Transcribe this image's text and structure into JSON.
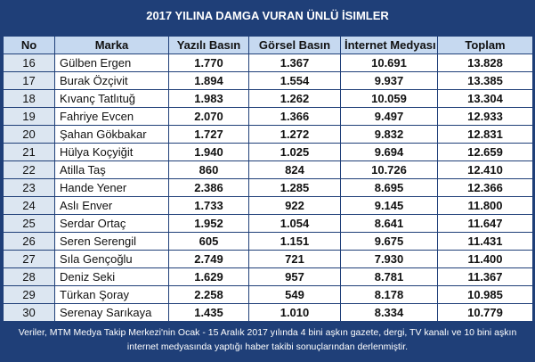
{
  "header": {
    "title": "2017 YILINA DAMGA VURAN ÜNLÜ İSIMLER"
  },
  "table": {
    "columns": [
      "No",
      "Marka",
      "Yazılı Basın",
      "Görsel Basın",
      "İnternet Medyası",
      "Toplam"
    ],
    "rows": [
      [
        "16",
        "Gülben Ergen",
        "1.770",
        "1.367",
        "10.691",
        "13.828"
      ],
      [
        "17",
        "Burak Özçivit",
        "1.894",
        "1.554",
        "9.937",
        "13.385"
      ],
      [
        "18",
        "Kıvanç Tatlıtuğ",
        "1.983",
        "1.262",
        "10.059",
        "13.304"
      ],
      [
        "19",
        "Fahriye Evcen",
        "2.070",
        "1.366",
        "9.497",
        "12.933"
      ],
      [
        "20",
        "Şahan Gökbakar",
        "1.727",
        "1.272",
        "9.832",
        "12.831"
      ],
      [
        "21",
        "Hülya Koçyiğit",
        "1.940",
        "1.025",
        "9.694",
        "12.659"
      ],
      [
        "22",
        "Atilla Taş",
        "860",
        "824",
        "10.726",
        "12.410"
      ],
      [
        "23",
        "Hande Yener",
        "2.386",
        "1.285",
        "8.695",
        "12.366"
      ],
      [
        "24",
        "Aslı Enver",
        "1.733",
        "922",
        "9.145",
        "11.800"
      ],
      [
        "25",
        "Serdar Ortaç",
        "1.952",
        "1.054",
        "8.641",
        "11.647"
      ],
      [
        "26",
        "Seren Serengil",
        "605",
        "1.151",
        "9.675",
        "11.431"
      ],
      [
        "27",
        "Sıla Gençoğlu",
        "2.749",
        "721",
        "7.930",
        "11.400"
      ],
      [
        "28",
        "Deniz Seki",
        "1.629",
        "957",
        "8.781",
        "11.367"
      ],
      [
        "29",
        "Türkan Şoray",
        "2.258",
        "549",
        "8.178",
        "10.985"
      ],
      [
        "30",
        "Serenay Sarıkaya",
        "1.435",
        "1.010",
        "8.334",
        "10.779"
      ]
    ]
  },
  "footer": {
    "note": "Veriler, MTM Medya Takip Merkezi'nin Ocak - 15 Aralık 2017 yılında 4 bini aşkın gazete, dergi, TV kanalı ve 10 bini aşkın internet medyasında yaptığı haber takibi sonuçlarından derlenmiştir."
  }
}
